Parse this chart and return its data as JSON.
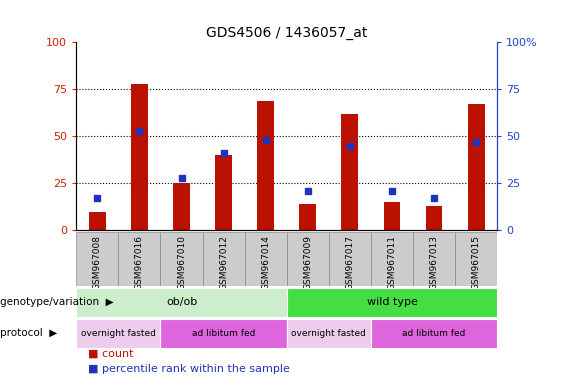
{
  "title": "GDS4506 / 1436057_at",
  "samples": [
    "GSM967008",
    "GSM967016",
    "GSM967010",
    "GSM967012",
    "GSM967014",
    "GSM967009",
    "GSM967017",
    "GSM967011",
    "GSM967013",
    "GSM967015"
  ],
  "counts": [
    10,
    78,
    25,
    40,
    69,
    14,
    62,
    15,
    13,
    67
  ],
  "percentiles": [
    17,
    53,
    28,
    41,
    48,
    21,
    45,
    21,
    17,
    47
  ],
  "bar_color": "#bb1100",
  "dot_color": "#2233bb",
  "ylim": [
    0,
    100
  ],
  "y_ticks": [
    0,
    25,
    50,
    75,
    100
  ],
  "background_color": "#ffffff",
  "genotype_groups": [
    {
      "label": "ob/ob",
      "start": 0,
      "end": 5,
      "color": "#cceecc"
    },
    {
      "label": "wild type",
      "start": 5,
      "end": 10,
      "color": "#44dd44"
    }
  ],
  "protocol_groups": [
    {
      "label": "overnight fasted",
      "start": 0,
      "end": 2,
      "color": "#eeccee"
    },
    {
      "label": "ad libitum fed",
      "start": 2,
      "end": 5,
      "color": "#dd66dd"
    },
    {
      "label": "overnight fasted",
      "start": 5,
      "end": 7,
      "color": "#eeccee"
    },
    {
      "label": "ad libitum fed",
      "start": 7,
      "end": 10,
      "color": "#dd66dd"
    }
  ],
  "left_label": "genotype/variation",
  "protocol_label": "protocol",
  "left_axis_color": "#cc2200",
  "right_tick_color": "#2244cc",
  "sample_box_color": "#cccccc",
  "sample_box_edge": "#888888"
}
